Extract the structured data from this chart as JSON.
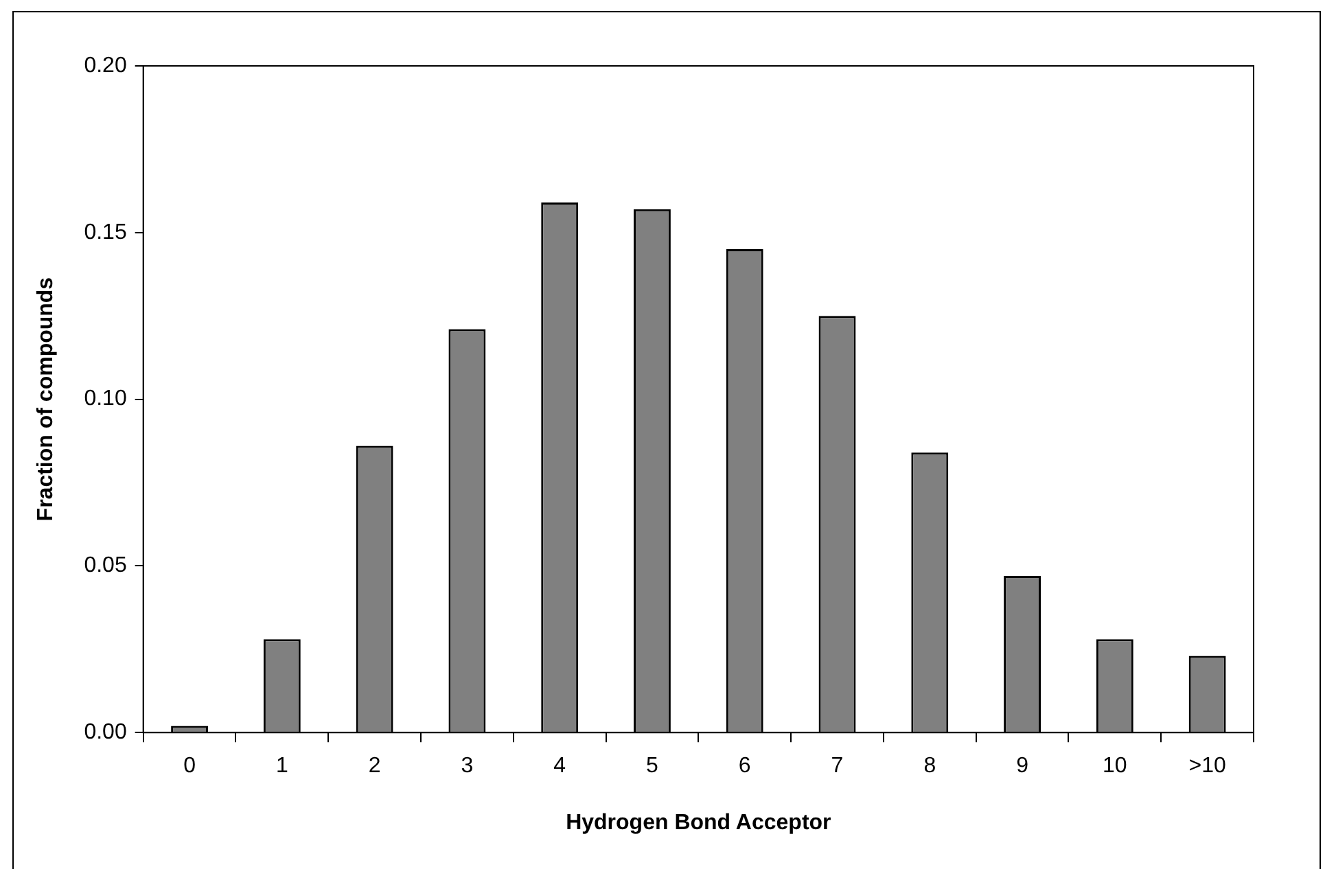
{
  "chart_data": {
    "type": "bar",
    "xlabel": "Hydrogen Bond Acceptor",
    "ylabel": "Fraction of compounds",
    "categories": [
      "0",
      "1",
      "2",
      "3",
      "4",
      "5",
      "6",
      "7",
      "8",
      "9",
      "10",
      ">10"
    ],
    "values": [
      0.002,
      0.028,
      0.086,
      0.121,
      0.159,
      0.157,
      0.145,
      0.125,
      0.084,
      0.047,
      0.028,
      0.023
    ],
    "color": "#808080",
    "ylim": [
      0,
      0.2
    ],
    "yticks": [
      {
        "value": 0,
        "label": "0.00"
      },
      {
        "value": 0.05,
        "label": "0.05"
      },
      {
        "value": 0.1,
        "label": "0.10"
      },
      {
        "value": 0.15,
        "label": "0.15"
      },
      {
        "value": 0.2,
        "label": "0.20"
      }
    ],
    "grid": false,
    "legend": false
  }
}
